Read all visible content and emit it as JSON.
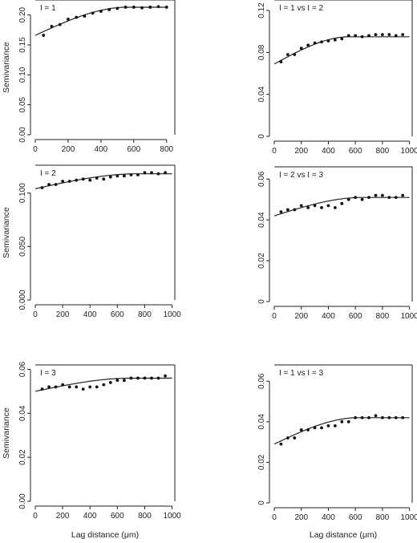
{
  "chart_data": [
    {
      "type": "scatter",
      "label": "I = 1",
      "ylabel": "Semivariance",
      "xlabel": "",
      "xlim": [
        0,
        850
      ],
      "ylim": [
        0,
        0.225
      ],
      "xticks": [
        0,
        200,
        400,
        600,
        800
      ],
      "yticks": [
        0.0,
        0.05,
        0.1,
        0.15,
        0.2
      ],
      "ytick_labels": [
        "0.00",
        "0.05",
        "0.10",
        "0.15",
        "0.20"
      ],
      "points": {
        "x": [
          50,
          100,
          150,
          200,
          250,
          300,
          350,
          400,
          450,
          500,
          550,
          600,
          650,
          700,
          750,
          800
        ],
        "y": [
          0.166,
          0.181,
          0.184,
          0.193,
          0.196,
          0.198,
          0.203,
          0.206,
          0.209,
          0.211,
          0.213,
          0.213,
          0.212,
          0.213,
          0.214,
          0.213
        ]
      },
      "fit": {
        "nugget": 0.166,
        "sill": 0.213,
        "range": 560
      }
    },
    {
      "type": "scatter",
      "label": "I = 1 vs I = 2",
      "ylabel": "",
      "xlabel": "",
      "xlim": [
        0,
        1020
      ],
      "ylim": [
        0,
        0.13
      ],
      "xticks": [
        0,
        200,
        400,
        600,
        800,
        1000
      ],
      "yticks": [
        0,
        0.04,
        0.08,
        0.12
      ],
      "ytick_labels": [
        "0",
        "0.04",
        "0.08",
        "0.12"
      ],
      "points": {
        "x": [
          50,
          100,
          150,
          200,
          250,
          300,
          350,
          400,
          450,
          500,
          550,
          600,
          650,
          700,
          750,
          800,
          850,
          900,
          950
        ],
        "y": [
          0.071,
          0.078,
          0.078,
          0.084,
          0.087,
          0.089,
          0.09,
          0.091,
          0.092,
          0.093,
          0.096,
          0.096,
          0.095,
          0.096,
          0.097,
          0.097,
          0.097,
          0.096,
          0.097
        ]
      },
      "fit": {
        "nugget": 0.069,
        "sill": 0.095,
        "range": 560
      }
    },
    {
      "type": "scatter",
      "label": "I = 2",
      "ylabel": "Semivariance",
      "xlabel": "",
      "xlim": [
        0,
        1020
      ],
      "ylim": [
        0,
        0.126
      ],
      "xticks": [
        0,
        200,
        400,
        600,
        800,
        1000
      ],
      "yticks": [
        0.0,
        0.05,
        0.1
      ],
      "ytick_labels": [
        "0.000",
        "0.050",
        "0.100"
      ],
      "points": {
        "x": [
          50,
          100,
          150,
          200,
          250,
          300,
          350,
          400,
          450,
          500,
          550,
          600,
          650,
          700,
          750,
          800,
          850,
          900,
          950
        ],
        "y": [
          0.105,
          0.108,
          0.108,
          0.111,
          0.111,
          0.112,
          0.113,
          0.112,
          0.114,
          0.113,
          0.115,
          0.116,
          0.116,
          0.117,
          0.117,
          0.119,
          0.119,
          0.118,
          0.119
        ]
      },
      "fit": {
        "nugget": 0.104,
        "sill": 0.118,
        "range": 750
      }
    },
    {
      "type": "scatter",
      "label": "I = 2 vs I = 3",
      "ylabel": "",
      "xlabel": "",
      "xlim": [
        0,
        1020
      ],
      "ylim": [
        0,
        0.066
      ],
      "xticks": [
        0,
        200,
        400,
        600,
        800,
        1000
      ],
      "yticks": [
        0,
        0.02,
        0.04,
        0.06
      ],
      "ytick_labels": [
        "0",
        "0.02",
        "0.04",
        "0.06"
      ],
      "points": {
        "x": [
          50,
          100,
          150,
          200,
          250,
          300,
          350,
          400,
          450,
          500,
          550,
          600,
          650,
          700,
          750,
          800,
          850,
          900,
          950
        ],
        "y": [
          0.044,
          0.045,
          0.045,
          0.047,
          0.046,
          0.047,
          0.046,
          0.047,
          0.046,
          0.048,
          0.05,
          0.051,
          0.05,
          0.051,
          0.052,
          0.052,
          0.051,
          0.051,
          0.052
        ]
      },
      "fit": {
        "nugget": 0.042,
        "sill": 0.051,
        "range": 650
      }
    },
    {
      "type": "scatter",
      "label": "I = 3",
      "ylabel": "Semivariance",
      "xlabel": "Lag distance (μm)",
      "xlim": [
        0,
        1020
      ],
      "ylim": [
        0,
        0.062
      ],
      "xticks": [
        0,
        200,
        400,
        600,
        800,
        1000
      ],
      "yticks": [
        0.0,
        0.02,
        0.04,
        0.06
      ],
      "ytick_labels": [
        "0.00",
        "0.02",
        "0.04",
        "0.06"
      ],
      "points": {
        "x": [
          50,
          100,
          150,
          200,
          250,
          300,
          350,
          400,
          450,
          500,
          550,
          600,
          650,
          700,
          750,
          800,
          850,
          900,
          950
        ],
        "y": [
          0.051,
          0.052,
          0.052,
          0.053,
          0.052,
          0.052,
          0.051,
          0.052,
          0.052,
          0.053,
          0.054,
          0.055,
          0.055,
          0.056,
          0.056,
          0.056,
          0.056,
          0.056,
          0.057
        ]
      },
      "fit": {
        "nugget": 0.05,
        "sill": 0.056,
        "range": 700
      }
    },
    {
      "type": "scatter",
      "label": "I = 1 vs I = 3",
      "ylabel": "",
      "xlabel": "Lag distance (μm)",
      "xlim": [
        0,
        1020
      ],
      "ylim": [
        0,
        0.068
      ],
      "xticks": [
        0,
        200,
        400,
        600,
        800,
        1000
      ],
      "yticks": [
        0,
        0.02,
        0.04,
        0.06
      ],
      "ytick_labels": [
        "0",
        "0.02",
        "0.04",
        "0.06"
      ],
      "points": {
        "x": [
          50,
          100,
          150,
          200,
          250,
          300,
          350,
          400,
          450,
          500,
          550,
          600,
          650,
          700,
          750,
          800,
          850,
          900,
          950
        ],
        "y": [
          0.029,
          0.032,
          0.032,
          0.036,
          0.036,
          0.037,
          0.037,
          0.038,
          0.038,
          0.04,
          0.04,
          0.042,
          0.042,
          0.042,
          0.043,
          0.042,
          0.042,
          0.042,
          0.042
        ]
      },
      "fit": {
        "nugget": 0.029,
        "sill": 0.042,
        "range": 620
      }
    }
  ]
}
